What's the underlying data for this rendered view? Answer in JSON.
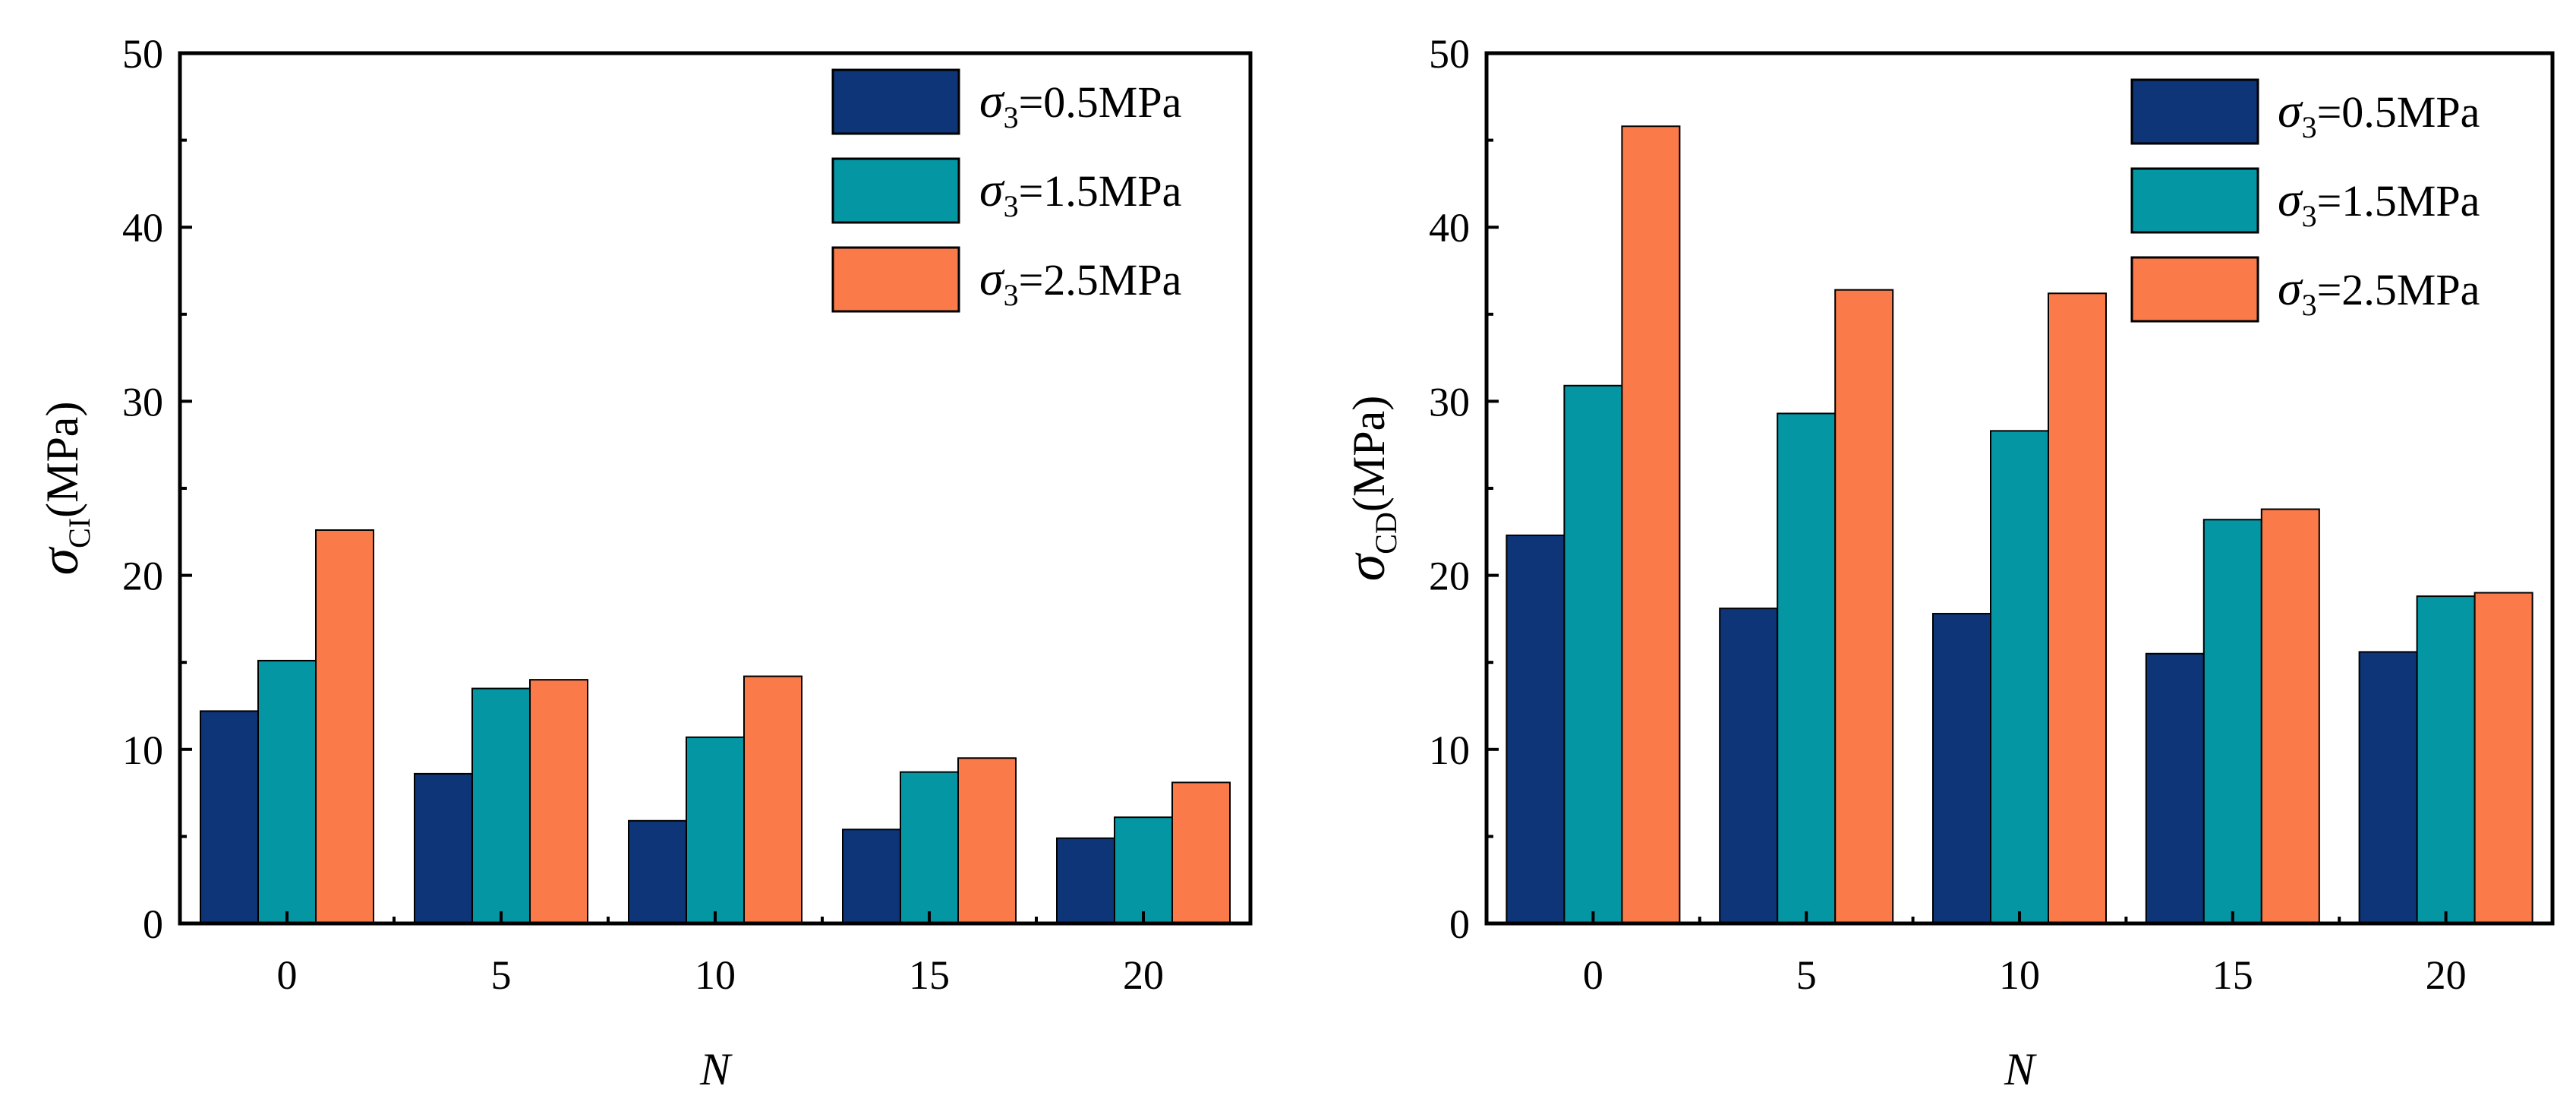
{
  "chart_data": [
    {
      "type": "bar",
      "categories": [
        "0",
        "5",
        "10",
        "15",
        "20"
      ],
      "xlabel": "N",
      "ylabel_symbol": "σ",
      "ylabel_sub": "CI",
      "ylabel_unit": "(MPa)",
      "ylim": [
        0,
        50
      ],
      "yticks": [
        "0",
        "10",
        "20",
        "30",
        "40",
        "50"
      ],
      "grid": false,
      "legend_position": "top-right",
      "series": [
        {
          "name": "σ3=0.5MPa",
          "legend_sub": "3",
          "legend_rest": "=0.5MPa",
          "color": "#0d3578",
          "values": [
            12.2,
            8.6,
            5.9,
            5.4,
            4.9
          ]
        },
        {
          "name": "σ3=1.5MPa",
          "legend_sub": "3",
          "legend_rest": "=1.5MPa",
          "color": "#0596a4",
          "values": [
            15.1,
            13.5,
            10.7,
            8.7,
            6.1
          ]
        },
        {
          "name": "σ3=2.5MPa",
          "legend_sub": "3",
          "legend_rest": "=2.5MPa",
          "color": "#fb7a4a",
          "values": [
            22.6,
            14.0,
            14.2,
            9.5,
            8.1
          ]
        }
      ]
    },
    {
      "type": "bar",
      "categories": [
        "0",
        "5",
        "10",
        "15",
        "20"
      ],
      "xlabel": "N",
      "ylabel_symbol": "σ",
      "ylabel_sub": "CD",
      "ylabel_unit": "(MPa)",
      "ylim": [
        0,
        50
      ],
      "yticks": [
        "0",
        "10",
        "20",
        "30",
        "40",
        "50"
      ],
      "grid": false,
      "legend_position": "top-right",
      "series": [
        {
          "name": "σ3=0.5MPa",
          "legend_sub": "3",
          "legend_rest": "=0.5MPa",
          "color": "#0d3578",
          "values": [
            22.3,
            18.1,
            17.8,
            15.5,
            15.6
          ]
        },
        {
          "name": "σ3=1.5MPa",
          "legend_sub": "3",
          "legend_rest": "=1.5MPa",
          "color": "#0596a4",
          "values": [
            30.9,
            29.3,
            28.3,
            23.2,
            18.8
          ]
        },
        {
          "name": "σ3=2.5MPa",
          "legend_sub": "3",
          "legend_rest": "=2.5MPa",
          "color": "#fb7a4a",
          "values": [
            45.8,
            36.4,
            36.2,
            23.8,
            19.0
          ]
        }
      ]
    }
  ]
}
